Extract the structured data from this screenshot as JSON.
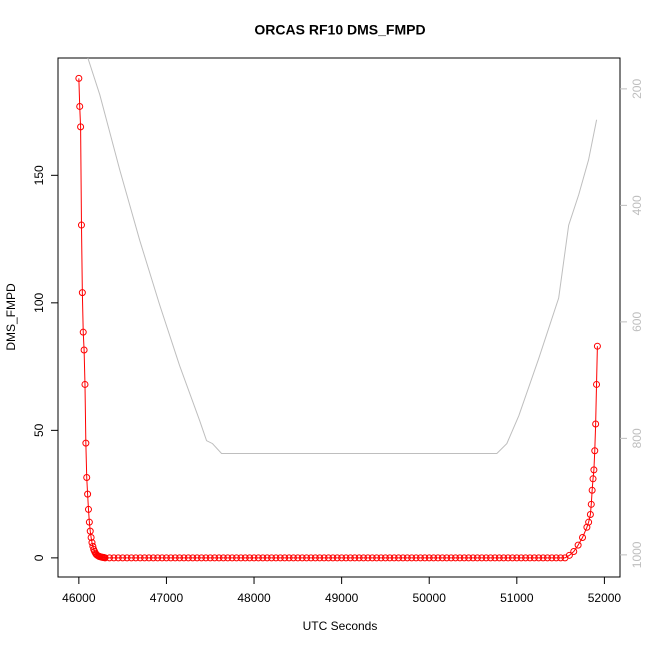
{
  "chart_data": {
    "type": "line",
    "title": "ORCAS RF10 DMS_FMPD",
    "xlabel": "UTC Seconds",
    "ylabel": "DMS_FMPD",
    "xlim": [
      45762,
      52178
    ],
    "xticks": [
      46000,
      47000,
      48000,
      49000,
      50000,
      51000,
      52000
    ],
    "ylim": [
      -7.5,
      196
    ],
    "yticks": [
      0,
      50,
      100,
      150
    ],
    "y2lim": [
      1038,
      147
    ],
    "y2ticks": [
      200,
      400,
      600,
      800,
      1000
    ],
    "y2color": "#bebebe",
    "series": [
      {
        "color": "#ff0000",
        "marker": "circle",
        "x": [
          46000,
          46010,
          46020,
          46030,
          46040,
          46050,
          46060,
          46070,
          46080,
          46090,
          46100,
          46110,
          46120,
          46130,
          46140,
          46150,
          46160,
          46170,
          46180,
          46190,
          46200,
          46210,
          46220,
          46230,
          46240,
          46250,
          46260,
          46270,
          46280,
          46290,
          46300,
          46350,
          46400,
          46450,
          46500,
          46550,
          46600,
          46650,
          46700,
          46750,
          46800,
          46850,
          46900,
          46950,
          47000,
          47050,
          47100,
          47150,
          47200,
          47250,
          47300,
          47350,
          47400,
          47450,
          47500,
          47550,
          47600,
          47650,
          47700,
          47750,
          47800,
          47850,
          47900,
          47950,
          48000,
          48050,
          48100,
          48150,
          48200,
          48250,
          48300,
          48350,
          48400,
          48450,
          48500,
          48550,
          48600,
          48650,
          48700,
          48750,
          48800,
          48850,
          48900,
          48950,
          49000,
          49050,
          49100,
          49150,
          49200,
          49250,
          49300,
          49350,
          49400,
          49450,
          49500,
          49550,
          49600,
          49650,
          49700,
          49750,
          49800,
          49850,
          49900,
          49950,
          50000,
          50050,
          50100,
          50150,
          50200,
          50250,
          50300,
          50350,
          50400,
          50450,
          50500,
          50550,
          50600,
          50650,
          50700,
          50750,
          50800,
          50850,
          50900,
          50950,
          51000,
          51050,
          51100,
          51150,
          51200,
          51250,
          51300,
          51350,
          51400,
          51450,
          51500,
          51550,
          51600,
          51650,
          51700,
          51750,
          51800,
          51820,
          51840,
          51850,
          51860,
          51870,
          51880,
          51890,
          51900,
          51910,
          51920
        ],
        "values": [
          188,
          177,
          169,
          130.5,
          104,
          88.5,
          81.5,
          68,
          45,
          31.5,
          25,
          19,
          14,
          10.5,
          8,
          6,
          4.5,
          3.3,
          2.5,
          1.8,
          1.3,
          1,
          0.8,
          0.6,
          0.5,
          0.4,
          0.3,
          0.2,
          0.2,
          0.1,
          0,
          0,
          0,
          0,
          0,
          0,
          0,
          0,
          0,
          0,
          0,
          0,
          0,
          0,
          0,
          0,
          0,
          0,
          0,
          0,
          0,
          0,
          0,
          0,
          0,
          0,
          0,
          0,
          0,
          0,
          0,
          0,
          0,
          0,
          0,
          0,
          0,
          0,
          0,
          0,
          0,
          0,
          0,
          0,
          0,
          0,
          0,
          0,
          0,
          0,
          0,
          0,
          0,
          0,
          0,
          0,
          0,
          0,
          0,
          0,
          0,
          0,
          0,
          0,
          0,
          0,
          0,
          0,
          0,
          0,
          0,
          0,
          0,
          0,
          0,
          0,
          0,
          0,
          0,
          0,
          0,
          0,
          0,
          0,
          0,
          0,
          0,
          0,
          0,
          0,
          0,
          0,
          0,
          0,
          0,
          0,
          0,
          0,
          0,
          0,
          0,
          0,
          0,
          0,
          0,
          0,
          1,
          2.5,
          5,
          8,
          12,
          14,
          17,
          21,
          26.5,
          31,
          34.5,
          42,
          52.5,
          68,
          83
        ]
      },
      {
        "color": "#bebebe",
        "axis": "y2",
        "x": [
          46103,
          46239,
          46467,
          46695,
          46923,
          47150,
          47378,
          47458,
          47526,
          47629,
          50772,
          50886,
          51023,
          51250,
          51478,
          51592,
          51706,
          51819,
          51911
        ],
        "values": [
          147,
          210,
          339,
          460,
          571,
          675,
          769,
          804,
          809,
          826,
          826,
          809,
          761,
          663,
          559,
          434,
          382,
          322,
          253
        ]
      }
    ]
  }
}
